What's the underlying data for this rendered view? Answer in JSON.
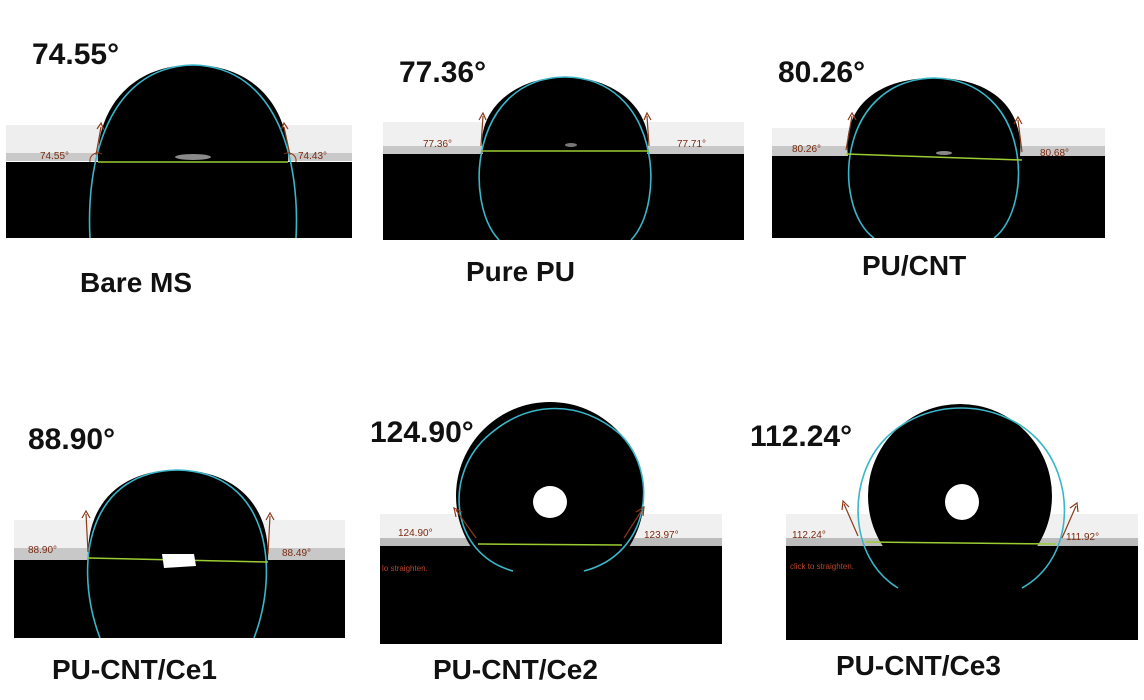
{
  "samples": [
    {
      "name": "Bare MS",
      "angle": "74.55°",
      "left_angle": "74.55°",
      "right_angle": "74.43°"
    },
    {
      "name": "Pure PU",
      "angle": "77.36°",
      "left_angle": "77.36°",
      "right_angle": "77.71°"
    },
    {
      "name": "PU/CNT",
      "angle": "80.26°",
      "left_angle": "80.26°",
      "right_angle": "80.68°"
    },
    {
      "name": "PU-CNT/Ce1",
      "angle": "88.90°",
      "left_angle": "88.90°",
      "right_angle": "88.49°"
    },
    {
      "name": "PU-CNT/Ce2",
      "angle": "124.90°",
      "left_angle": "124.90°",
      "right_angle": "123.97°",
      "hint": "lo straighten."
    },
    {
      "name": "PU-CNT/Ce3",
      "angle": "112.24°",
      "left_angle": "112.24°",
      "right_angle": "111.92°",
      "hint": "click to straighten."
    }
  ],
  "colors": {
    "droplet": "#000000",
    "surface": "#000000",
    "fit_line": "#3bb5c8",
    "baseline": "#9acd32",
    "annotation": "#8b3a1a"
  }
}
